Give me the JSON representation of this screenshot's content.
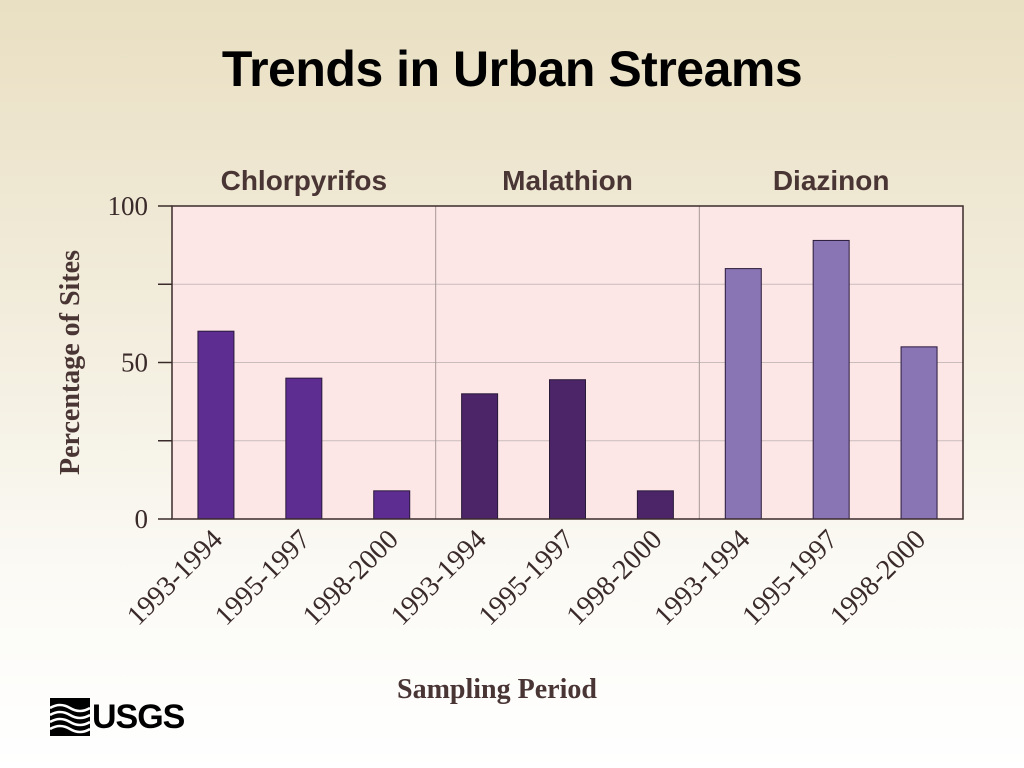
{
  "title": "Trends in Urban Streams",
  "logo": {
    "text": "USGS"
  },
  "colors": {
    "chlorpyrifos": "#5e2d91",
    "malathion": "#4b2567",
    "diazinon": "#8974b4",
    "plot_bg": "#fce6e6"
  },
  "chart_data": {
    "type": "bar",
    "ylabel": "Percentage of Sites",
    "xlabel": "Sampling Period",
    "ylim": [
      0,
      100
    ],
    "yticks": [
      0,
      50,
      100
    ],
    "grid": true,
    "groups": [
      {
        "name": "Chlorpyrifos",
        "categories": [
          "1993-1994",
          "1995-1997",
          "1998-2000"
        ],
        "values": [
          60,
          45,
          9
        ]
      },
      {
        "name": "Malathion",
        "categories": [
          "1993-1994",
          "1995-1997",
          "1998-2000"
        ],
        "values": [
          40,
          44.5,
          9
        ]
      },
      {
        "name": "Diazinon",
        "categories": [
          "1993-1994",
          "1995-1997",
          "1998-2000"
        ],
        "values": [
          80,
          89,
          55
        ]
      }
    ]
  }
}
